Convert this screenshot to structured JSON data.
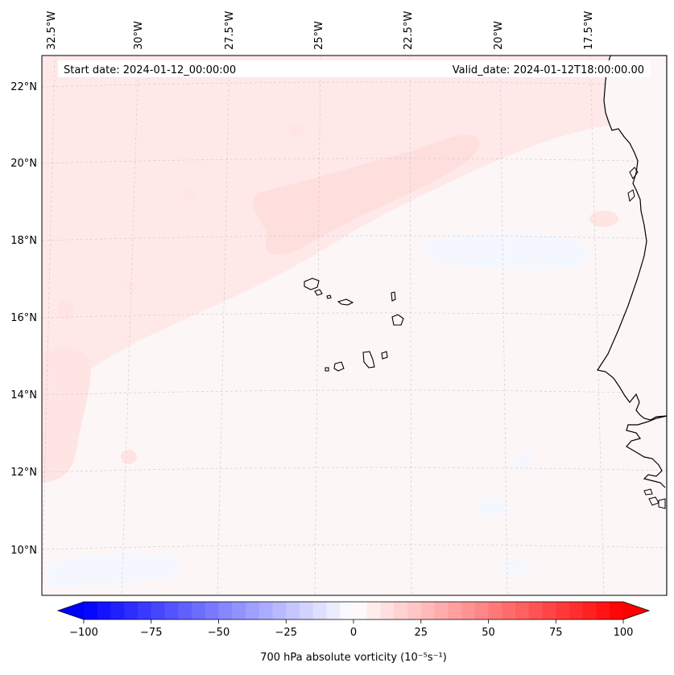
{
  "header": {
    "start_date": "Start date: 2024-01-12_00:00:00",
    "valid_date": "Valid_date: 2024-01-12T18:00:00.00"
  },
  "map": {
    "lon_labels": [
      "32.5°W",
      "30°W",
      "27.5°W",
      "25°W",
      "22.5°W",
      "20°W",
      "17.5°W"
    ],
    "lat_labels": [
      "22°N",
      "20°N",
      "18°N",
      "16°N",
      "14°N",
      "12°N",
      "10°N"
    ],
    "ocean_color": "#fdf6f6",
    "positive_vorticity_color": "#ffe3e3",
    "negative_vorticity_color": "#f6f8ff",
    "coastline_color": "#000000"
  },
  "colorbar": {
    "label": "700 hPa absolute vorticity (10⁻⁵s⁻¹)",
    "ticks": [
      "−100",
      "−75",
      "−50",
      "−25",
      "0",
      "25",
      "50",
      "75",
      "100"
    ],
    "min": -100,
    "max": 100,
    "min_color": "#0000ff",
    "mid_color": "#ffffff",
    "max_color": "#ff0000",
    "extend": "both"
  }
}
